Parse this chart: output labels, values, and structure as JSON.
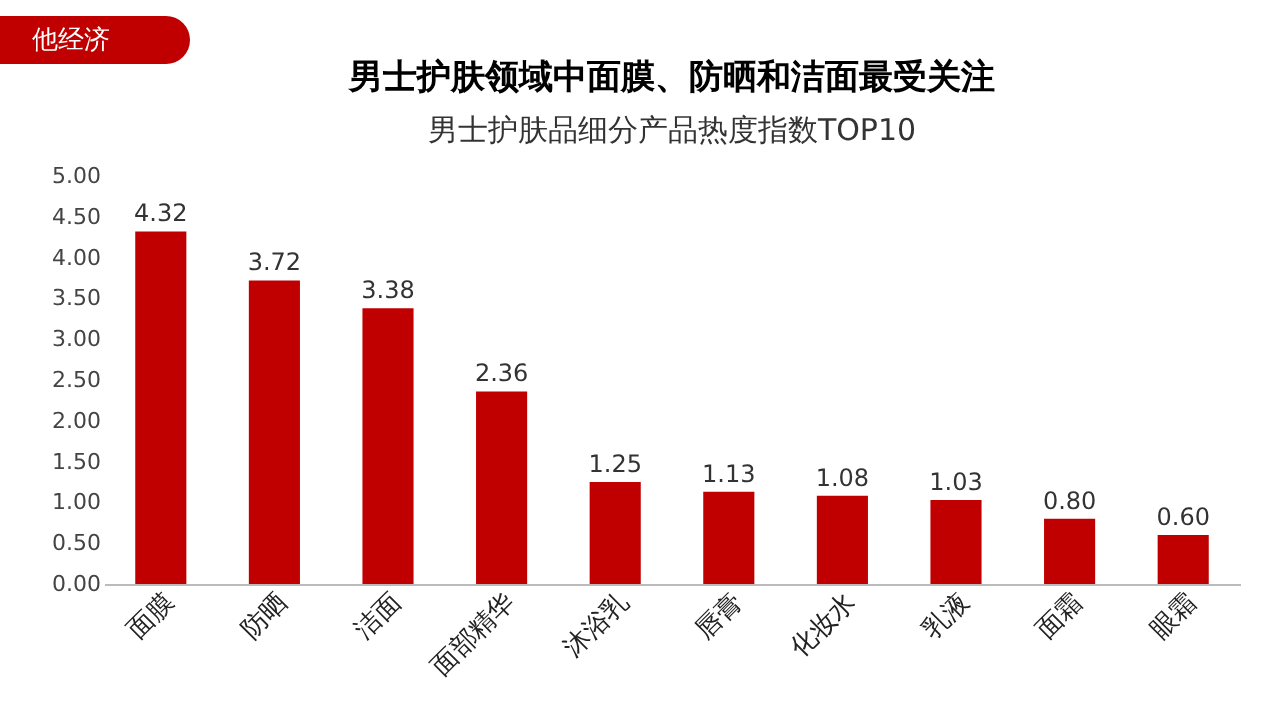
{
  "chart_data": {
    "type": "bar",
    "title": "男士护肤领域中面膜、防晒和洁面最受关注",
    "subtitle": "男士护肤品细分产品热度指数TOP10",
    "annotations": [
      "他经济"
    ],
    "categories": [
      "面膜",
      "防晒",
      "洁面",
      "面部精华",
      "沐浴乳",
      "唇膏",
      "化妆水",
      "乳液",
      "面霜",
      "眼霜"
    ],
    "values": [
      4.32,
      3.72,
      3.38,
      2.36,
      1.25,
      1.13,
      1.08,
      1.03,
      0.8,
      0.6
    ],
    "value_labels": [
      "4.32",
      "3.72",
      "3.38",
      "2.36",
      "1.25",
      "1.13",
      "1.08",
      "1.03",
      "0.80",
      "0.60"
    ],
    "color": "#c00000",
    "ylim": [
      0,
      5
    ],
    "yticks": [
      {
        "value": 0,
        "label": "0.00"
      },
      {
        "value": 0.5,
        "label": "0.50"
      },
      {
        "value": 1,
        "label": "1.00"
      },
      {
        "value": 1.5,
        "label": "1.50"
      },
      {
        "value": 2,
        "label": "2.00"
      },
      {
        "value": 2.5,
        "label": "2.50"
      },
      {
        "value": 3,
        "label": "3.00"
      },
      {
        "value": 3.5,
        "label": "3.50"
      },
      {
        "value": 4,
        "label": "4.00"
      },
      {
        "value": 4.5,
        "label": "4.50"
      },
      {
        "value": 5,
        "label": "5.00"
      }
    ],
    "grid": false
  }
}
